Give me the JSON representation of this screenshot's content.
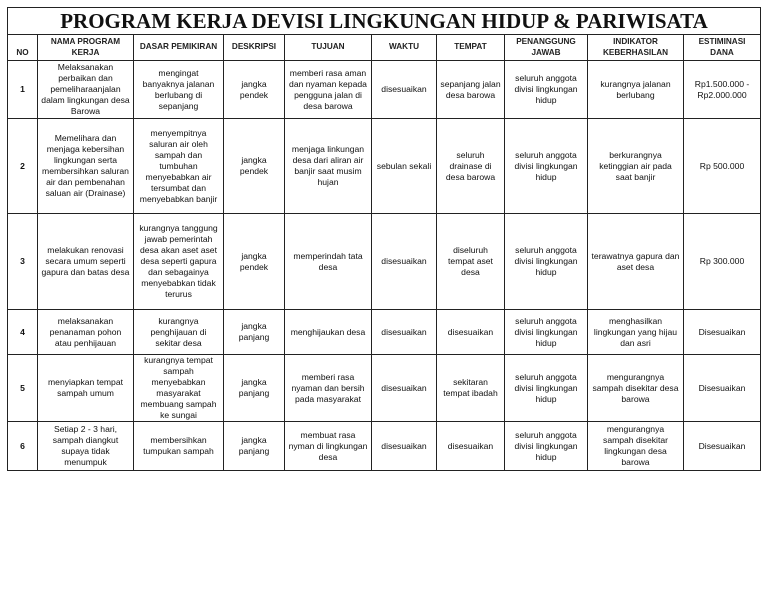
{
  "title": "PROGRAM KERJA DEVISI LINGKUNGAN HIDUP & PARIWISATA",
  "headers": [
    "NO",
    "NAMA PROGRAM KERJA",
    "DASAR PEMIKIRAN",
    "DESKRIPSI",
    "TUJUAN",
    "WAKTU",
    "TEMPAT",
    "PENANGGUNG JAWAB",
    "INDIKATOR KEBERHASILAN",
    "ESTIMINASI DANA"
  ],
  "rows": [
    [
      "1",
      "Melaksanakan perbaikan dan pemeliharaanjalan dalam lingkungan desa Barowa",
      "mengingat banyaknya jalanan berlubang di sepanjang",
      "jangka pendek",
      "memberi rasa aman dan nyaman kepada pengguna jalan di desa barowa",
      "disesuaikan",
      "sepanjang jalan desa barowa",
      "seluruh anggota divisi lingkungan hidup",
      "kurangnya jalanan berlubang",
      "Rp1.500.000 - Rp2.000.000"
    ],
    [
      "2",
      "Memelihara dan menjaga kebersihan lingkungan serta membersihkan saluran air dan pembenahan saluan air (Drainase)",
      "menyempitnya saluran air oleh sampah dan tumbuhan menyebabkan air tersumbat dan menyebabkan banjir",
      "jangka pendek",
      "menjaga linkungan desa dari aliran air banjir saat musim hujan",
      "sebulan sekali",
      "seluruh drainase di desa barowa",
      "seluruh anggota divisi lingkungan hidup",
      "berkurangnya ketinggian air pada saat banjir",
      "Rp 500.000"
    ],
    [
      "3",
      "melakukan renovasi secara umum seperti gapura dan batas desa",
      "kurangnya tanggung jawab pemerintah desa akan aset aset desa seperti gapura dan sebagainya menyebabkan tidak terurus",
      "jangka pendek",
      "memperindah tata desa",
      "disesuaikan",
      "diseluruh tempat aset desa",
      "seluruh anggota divisi lingkungan hidup",
      "terawatnya gapura dan aset desa",
      "Rp 300.000"
    ],
    [
      "4",
      "melaksanakan penanaman pohon atau penhijauan",
      "kurangnya penghijauan di sekitar desa",
      "jangka panjang",
      "menghijaukan desa",
      "disesuaikan",
      "disesuaikan",
      "seluruh anggota divisi lingkungan hidup",
      "menghasilkan lingkungan yang hijau dan asri",
      "Disesuaikan"
    ],
    [
      "5",
      "menyiapkan tempat sampah umum",
      "kurangnya tempat sampah menyebabkan masyarakat membuang sampah ke sungai",
      "jangka panjang",
      "memberi rasa nyaman dan bersih pada masyarakat",
      "disesuaikan",
      "sekitaran tempat ibadah",
      "seluruh anggota divisi lingkungan hidup",
      "mengurangnya sampah disekitar desa barowa",
      "Disesuaikan"
    ],
    [
      "6",
      "Setiap 2 - 3 hari, sampah diangkut supaya tidak menumpuk",
      "membersihkan tumpukan sampah",
      "jangka panjang",
      "membuat rasa nyman di lingkungan desa",
      "disesuaikan",
      "disesuaikan",
      "seluruh anggota divisi lingkungan hidup",
      "mengurangnya sampah disekitar lingkungan desa barowa",
      "Disesuaikan"
    ]
  ]
}
